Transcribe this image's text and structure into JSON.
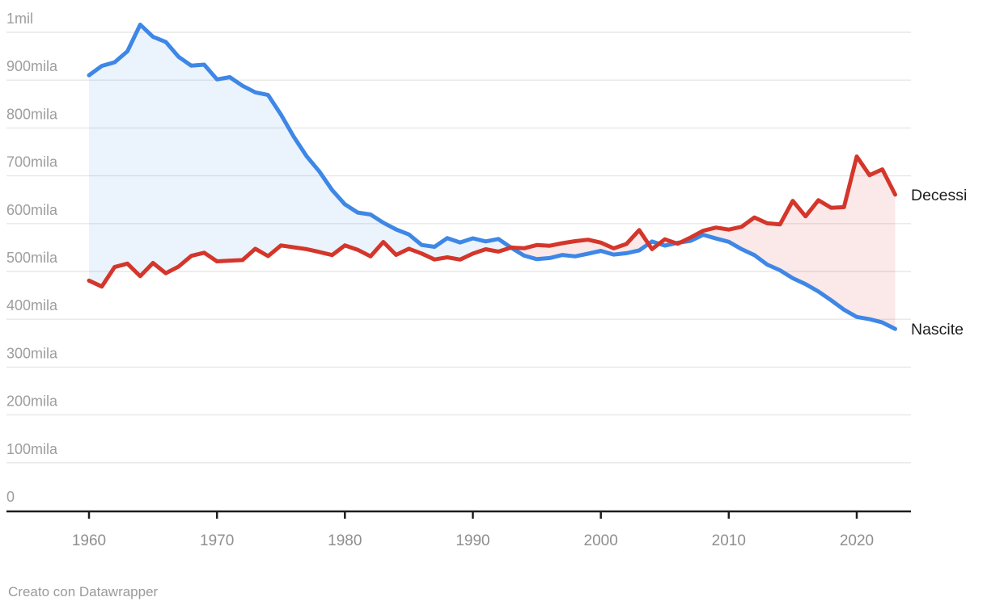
{
  "chart_data": {
    "type": "line",
    "years": [
      1960,
      1961,
      1962,
      1963,
      1964,
      1965,
      1966,
      1967,
      1968,
      1969,
      1970,
      1971,
      1972,
      1973,
      1974,
      1975,
      1976,
      1977,
      1978,
      1979,
      1980,
      1981,
      1982,
      1983,
      1984,
      1985,
      1986,
      1987,
      1988,
      1989,
      1990,
      1991,
      1992,
      1993,
      1994,
      1995,
      1996,
      1997,
      1998,
      1999,
      2000,
      2001,
      2002,
      2003,
      2004,
      2005,
      2006,
      2007,
      2008,
      2009,
      2010,
      2011,
      2012,
      2013,
      2014,
      2015,
      2016,
      2017,
      2018,
      2019,
      2020,
      2021,
      2022,
      2023
    ],
    "series": [
      {
        "name": "Nascite",
        "color": "#3e87e6",
        "values": [
          910192,
          929657,
          937257,
          960336,
          1016120,
          990458,
          979940,
          948772,
          930172,
          932466,
          901472,
          906182,
          888203,
          874546,
          868882,
          827852,
          781638,
          741103,
          709043,
          670221,
          640401,
          623103,
          619097,
          601928,
          587871,
          577345,
          555445,
          551539,
          569698,
          560688,
          569255,
          562787,
          567841,
          549484,
          533050,
          525609,
          528103,
          534462,
          531548,
          537242,
          543039,
          535282,
          538198,
          544063,
          562599,
          554022,
          560010,
          563933,
          576659,
          568857,
          561944,
          546585,
          534186,
          514308,
          502596,
          485780,
          473438,
          458151,
          439747,
          420084,
          404892,
          400249,
          393333,
          379890
        ]
      },
      {
        "name": "Decessi",
        "color": "#d4362b",
        "values": [
          480932,
          468455,
          509174,
          516377,
          490050,
          517716,
          496281,
          510122,
          532571,
          539129,
          521096,
          522654,
          523828,
          547487,
          532052,
          554346,
          550565,
          546694,
          540671,
          534226,
          554510,
          545291,
          531541,
          561648,
          534676,
          547436,
          537453,
          524999,
          529489,
          524868,
          537291,
          546497,
          541587,
          550043,
          548461,
          555203,
          553692,
          559161,
          563286,
          566317,
          560241,
          548227,
          557393,
          586468,
          546658,
          567304,
          557892,
          570801,
          585126,
          591663,
          587488,
          593402,
          612883,
          600744,
          598364,
          647571,
          615261,
          649061,
          633133,
          634417,
          740317,
          701346,
          713499,
          660609
        ]
      }
    ],
    "fill_between": {
      "nascite_above_color": "rgba(62,135,230,0.10)",
      "decessi_above_color": "rgba(212,53,42,0.11)"
    },
    "y_axis": {
      "min": 0,
      "max": 1000000,
      "ticks": [
        {
          "value": 0,
          "label": "0"
        },
        {
          "value": 100000,
          "label": "100mila"
        },
        {
          "value": 200000,
          "label": "200mila"
        },
        {
          "value": 300000,
          "label": "300mila"
        },
        {
          "value": 400000,
          "label": "400mila"
        },
        {
          "value": 500000,
          "label": "500mila"
        },
        {
          "value": 600000,
          "label": "600mila"
        },
        {
          "value": 700000,
          "label": "700mila"
        },
        {
          "value": 800000,
          "label": "800mila"
        },
        {
          "value": 900000,
          "label": "900mila"
        },
        {
          "value": 1000000,
          "label": "1mil"
        }
      ]
    },
    "x_axis": {
      "ticks": [
        {
          "value": 1960,
          "label": "1960"
        },
        {
          "value": 1970,
          "label": "1970"
        },
        {
          "value": 1980,
          "label": "1980"
        },
        {
          "value": 1990,
          "label": "1990"
        },
        {
          "value": 2000,
          "label": "2000"
        },
        {
          "value": 2010,
          "label": "2010"
        },
        {
          "value": 2020,
          "label": "2020"
        }
      ]
    },
    "grid": true,
    "legend": "end-of-line-labels",
    "end_labels": {
      "decessi": "Decessi",
      "nascite": "Nascite"
    }
  },
  "style": {
    "grid_color": "#e7e7e7",
    "axis_color": "#1d1d1d",
    "y_label_color": "#9e9e9e",
    "x_label_color": "#8f8f8f",
    "series_label_color": "#1d1d1d",
    "line_width": 5
  },
  "footer": {
    "credit": "Creato con Datawrapper"
  }
}
